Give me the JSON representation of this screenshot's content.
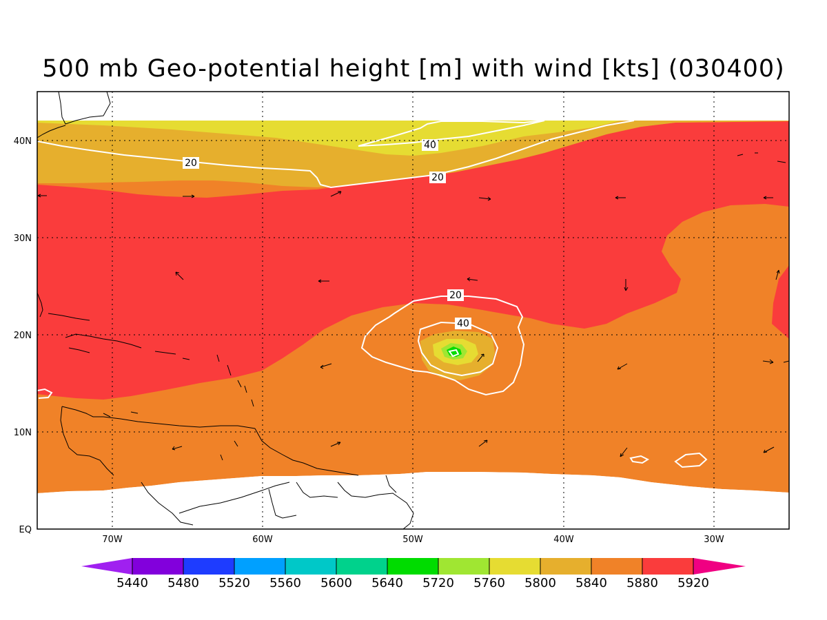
{
  "title": "500 mb Geo-potential height [m] with wind [kts] (030400)",
  "map": {
    "lon_range": [
      -75,
      -25
    ],
    "lat_range": [
      0,
      45
    ],
    "lon_ticks": [
      "70W",
      "60W",
      "50W",
      "40W",
      "30W"
    ],
    "lat_ticks": [
      "EQ",
      "10N",
      "20N",
      "30N",
      "40N"
    ],
    "grid": "dotted",
    "wind_contour_labels": [
      "20",
      "40",
      "20",
      "20",
      "40"
    ]
  },
  "colorbar": {
    "labels": [
      "5440",
      "5480",
      "5520",
      "5560",
      "5600",
      "5640",
      "5720",
      "5760",
      "5800",
      "5840",
      "5880",
      "5920"
    ],
    "colors": [
      "#a020f0",
      "#8200dc",
      "#1e3cff",
      "#00a0ff",
      "#00c8c8",
      "#00d28c",
      "#00dc00",
      "#a0e632",
      "#e6dc32",
      "#e6af2d",
      "#f08228",
      "#fa3c3c",
      "#f00082"
    ]
  },
  "fill_colors": {
    "c5920_plus": "#fa3c3c",
    "c5880": "#f08228",
    "c5840": "#e6af2d",
    "c5800": "#e6dc32",
    "c5760": "#a0e632",
    "c5720": "#00dc00"
  }
}
